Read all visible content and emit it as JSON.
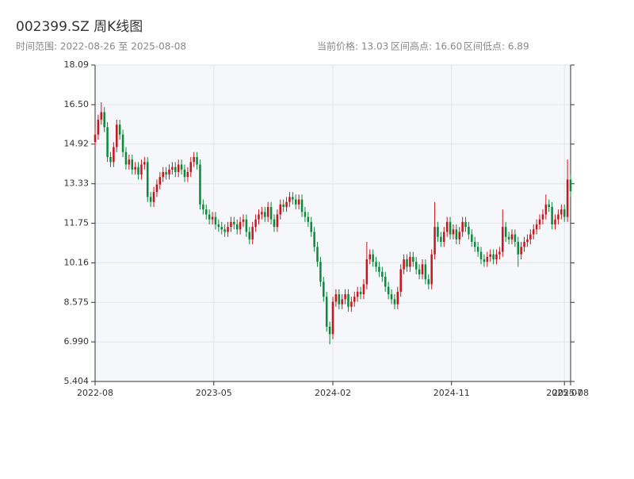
{
  "chart_data": {
    "type": "candlestick",
    "title": "002399.SZ 周K线图",
    "subtitle": "时间范围: 2022-08-26 至 2025-08-08",
    "info": [
      "当前价格: 13.03",
      "区间高点: 16.60",
      "区间低点: 6.89"
    ],
    "up_color": "#c8161d",
    "down_color": "#0b8a3c",
    "grid": true,
    "ylim": [
      5.404,
      18.09
    ],
    "yticks": [
      5.404,
      {
        "value": 6.99,
        "label": "6.990"
      },
      8.575,
      10.16,
      11.75,
      13.33,
      14.92,
      {
        "value": 16.5,
        "label": "16.50"
      },
      18.09
    ],
    "xlim": [
      "2022-08-26",
      "2025-08-08"
    ],
    "xticks": [
      {
        "value": "2022-08-26",
        "label": "2022-08"
      },
      {
        "value": "2023-05-22",
        "label": "2023-05"
      },
      {
        "value": "2024-02-16",
        "label": "2024-02"
      },
      {
        "value": "2024-11-11",
        "label": "2024-11"
      },
      {
        "value": "2025-07-25",
        "label": "2025-07"
      },
      {
        "value": "2025-08-08",
        "label": "2025-08"
      }
    ],
    "x": [
      "2022-08-26",
      "2022-09-02",
      "2022-09-09",
      "2022-09-16",
      "2022-09-23",
      "2022-09-30",
      "2022-10-07",
      "2022-10-14",
      "2022-10-21",
      "2022-10-28",
      "2022-11-04",
      "2022-11-11",
      "2022-11-18",
      "2022-11-25",
      "2022-12-02",
      "2022-12-09",
      "2022-12-16",
      "2022-12-23",
      "2022-12-30",
      "2023-01-06",
      "2023-01-13",
      "2023-01-20",
      "2023-01-27",
      "2023-02-03",
      "2023-02-10",
      "2023-02-17",
      "2023-02-24",
      "2023-03-03",
      "2023-03-10",
      "2023-03-17",
      "2023-03-24",
      "2023-03-31",
      "2023-04-07",
      "2023-04-14",
      "2023-04-21",
      "2023-04-28",
      "2023-05-05",
      "2023-05-12",
      "2023-05-19",
      "2023-05-26",
      "2023-06-02",
      "2023-06-09",
      "2023-06-16",
      "2023-06-23",
      "2023-06-30",
      "2023-07-07",
      "2023-07-14",
      "2023-07-21",
      "2023-07-28",
      "2023-08-04",
      "2023-08-11",
      "2023-08-18",
      "2023-08-25",
      "2023-09-01",
      "2023-09-08",
      "2023-09-15",
      "2023-09-22",
      "2023-09-29",
      "2023-10-06",
      "2023-10-13",
      "2023-10-20",
      "2023-10-27",
      "2023-11-03",
      "2023-11-10",
      "2023-11-17",
      "2023-11-24",
      "2023-12-01",
      "2023-12-08",
      "2023-12-15",
      "2023-12-22",
      "2023-12-29",
      "2024-01-05",
      "2024-01-12",
      "2024-01-19",
      "2024-01-26",
      "2024-02-02",
      "2024-02-09",
      "2024-02-16",
      "2024-02-23",
      "2024-03-01",
      "2024-03-08",
      "2024-03-15",
      "2024-03-22",
      "2024-03-29",
      "2024-04-05",
      "2024-04-12",
      "2024-04-19",
      "2024-04-26",
      "2024-05-03",
      "2024-05-10",
      "2024-05-17",
      "2024-05-24",
      "2024-05-31",
      "2024-06-07",
      "2024-06-14",
      "2024-06-21",
      "2024-06-28",
      "2024-07-05",
      "2024-07-12",
      "2024-07-19",
      "2024-07-26",
      "2024-08-02",
      "2024-08-09",
      "2024-08-16",
      "2024-08-23",
      "2024-08-30",
      "2024-09-06",
      "2024-09-13",
      "2024-09-20",
      "2024-09-27",
      "2024-10-04",
      "2024-10-11",
      "2024-10-18",
      "2024-10-25",
      "2024-11-01",
      "2024-11-08",
      "2024-11-15",
      "2024-11-22",
      "2024-11-29",
      "2024-12-06",
      "2024-12-13",
      "2024-12-20",
      "2024-12-27",
      "2025-01-03",
      "2025-01-10",
      "2025-01-17",
      "2025-01-24",
      "2025-01-31",
      "2025-02-07",
      "2025-02-14",
      "2025-02-21",
      "2025-02-28",
      "2025-03-07",
      "2025-03-14",
      "2025-03-21",
      "2025-03-28",
      "2025-04-04",
      "2025-04-11",
      "2025-04-18",
      "2025-04-25",
      "2025-05-02",
      "2025-05-09",
      "2025-05-16",
      "2025-05-23",
      "2025-05-30",
      "2025-06-06",
      "2025-06-13",
      "2025-06-20",
      "2025-06-27",
      "2025-07-04",
      "2025-07-11",
      "2025-07-18",
      "2025-07-25",
      "2025-08-01",
      "2025-08-08"
    ],
    "open": [
      15.0,
      15.3,
      15.9,
      16.2,
      15.6,
      14.4,
      14.2,
      14.8,
      15.7,
      15.3,
      14.6,
      14.1,
      14.3,
      13.9,
      14.0,
      13.7,
      14.1,
      14.2,
      12.8,
      12.6,
      13.0,
      13.3,
      13.6,
      13.8,
      13.7,
      13.9,
      14.0,
      13.8,
      14.1,
      13.9,
      13.6,
      13.8,
      14.2,
      14.4,
      14.1,
      12.5,
      12.3,
      12.1,
      11.9,
      12.0,
      11.7,
      11.6,
      11.5,
      11.4,
      11.6,
      11.8,
      11.7,
      11.5,
      11.8,
      11.9,
      11.4,
      11.1,
      11.6,
      11.9,
      12.1,
      12.2,
      12.0,
      12.4,
      11.9,
      11.6,
      12.1,
      12.5,
      12.4,
      12.6,
      12.8,
      12.7,
      12.5,
      12.7,
      12.2,
      12.0,
      11.8,
      11.4,
      10.8,
      10.2,
      9.4,
      8.8,
      7.6,
      7.3,
      8.6,
      8.9,
      8.5,
      8.7,
      8.9,
      8.4,
      8.6,
      8.8,
      9.0,
      8.9,
      9.3,
      10.3,
      10.5,
      10.2,
      10.0,
      9.8,
      9.6,
      9.2,
      8.9,
      8.7,
      8.5,
      9.0,
      9.9,
      10.3,
      10.0,
      10.4,
      10.2,
      9.9,
      9.7,
      10.1,
      9.5,
      9.3,
      10.5,
      11.6,
      11.2,
      11.0,
      11.4,
      11.8,
      11.3,
      11.5,
      11.1,
      11.4,
      11.8,
      11.6,
      11.3,
      11.0,
      10.8,
      10.6,
      10.3,
      10.2,
      10.4,
      10.5,
      10.3,
      10.5,
      10.6,
      11.6,
      11.2,
      11.1,
      11.3,
      11.0,
      10.5,
      10.8,
      11.0,
      11.1,
      11.3,
      11.5,
      11.7,
      11.9,
      12.1,
      12.5,
      12.4,
      11.7,
      11.9,
      12.1,
      12.3,
      12.0,
      13.5
    ],
    "high": [
      15.5,
      16.1,
      16.6,
      16.4,
      15.8,
      14.6,
      15.0,
      15.9,
      15.9,
      15.5,
      14.8,
      14.5,
      14.5,
      14.2,
      14.2,
      14.3,
      14.4,
      14.4,
      13.0,
      13.2,
      13.5,
      13.8,
      14.0,
      14.0,
      14.1,
      14.2,
      14.2,
      14.3,
      14.3,
      14.1,
      14.0,
      14.4,
      14.6,
      14.6,
      14.3,
      12.7,
      12.5,
      12.3,
      12.2,
      12.2,
      11.9,
      11.8,
      11.7,
      11.8,
      12.0,
      12.0,
      11.9,
      12.0,
      12.1,
      12.1,
      11.6,
      11.8,
      12.1,
      12.3,
      12.4,
      12.4,
      12.6,
      12.6,
      12.1,
      12.3,
      12.7,
      12.7,
      12.8,
      13.0,
      13.0,
      12.9,
      12.9,
      12.9,
      12.4,
      12.2,
      12.0,
      11.6,
      11.0,
      10.4,
      9.6,
      9.0,
      7.8,
      8.8,
      9.1,
      9.1,
      8.9,
      9.1,
      9.1,
      8.8,
      9.0,
      9.2,
      9.2,
      9.5,
      11.0,
      10.7,
      10.7,
      10.4,
      10.2,
      10.0,
      9.8,
      9.4,
      9.1,
      8.9,
      9.2,
      10.1,
      10.5,
      10.5,
      10.6,
      10.6,
      10.4,
      10.1,
      10.3,
      10.3,
      9.7,
      10.7,
      12.6,
      11.8,
      11.4,
      11.6,
      12.0,
      12.0,
      11.7,
      11.7,
      11.6,
      12.0,
      12.0,
      11.8,
      11.5,
      11.2,
      11.0,
      10.8,
      10.5,
      10.6,
      10.7,
      10.7,
      10.7,
      10.8,
      12.3,
      11.8,
      11.4,
      11.5,
      11.5,
      11.2,
      11.0,
      11.2,
      11.3,
      11.5,
      11.7,
      11.9,
      12.1,
      12.3,
      12.9,
      12.7,
      12.6,
      12.1,
      12.3,
      12.5,
      12.5,
      14.3,
      13.7
    ],
    "low": [
      14.8,
      15.1,
      15.7,
      15.4,
      14.2,
      14.0,
      14.0,
      14.6,
      15.1,
      14.4,
      13.9,
      13.9,
      13.7,
      13.7,
      13.5,
      13.5,
      13.9,
      12.6,
      12.4,
      12.4,
      12.8,
      13.1,
      13.4,
      13.5,
      13.5,
      13.7,
      13.6,
      13.6,
      13.7,
      13.4,
      13.4,
      13.6,
      14.0,
      13.9,
      12.3,
      12.1,
      11.9,
      11.7,
      11.7,
      11.5,
      11.4,
      11.3,
      11.2,
      11.2,
      11.4,
      11.5,
      11.3,
      11.3,
      11.6,
      11.2,
      10.9,
      10.9,
      11.4,
      11.7,
      11.9,
      11.8,
      11.8,
      11.7,
      11.4,
      11.4,
      11.9,
      12.2,
      12.2,
      12.4,
      12.5,
      12.3,
      12.3,
      12.0,
      11.8,
      11.6,
      11.2,
      10.6,
      10.0,
      9.2,
      8.6,
      7.4,
      6.89,
      7.1,
      8.4,
      8.3,
      8.3,
      8.5,
      8.2,
      8.2,
      8.4,
      8.6,
      8.7,
      8.7,
      9.1,
      10.1,
      10.0,
      9.8,
      9.6,
      9.4,
      9.0,
      8.7,
      8.5,
      8.3,
      8.3,
      8.8,
      9.7,
      9.8,
      9.8,
      10.0,
      9.7,
      9.5,
      9.5,
      9.3,
      9.1,
      9.1,
      10.3,
      11.0,
      10.8,
      10.8,
      11.2,
      11.1,
      11.1,
      10.9,
      10.9,
      11.2,
      11.4,
      11.1,
      10.8,
      10.6,
      10.4,
      10.1,
      10.0,
      10.0,
      10.2,
      10.1,
      10.1,
      10.3,
      10.4,
      11.0,
      10.9,
      10.9,
      10.8,
      10.0,
      10.3,
      10.6,
      10.8,
      10.9,
      11.1,
      11.3,
      11.5,
      11.7,
      11.9,
      12.2,
      11.5,
      11.5,
      11.7,
      11.9,
      11.8,
      11.8,
      12.8
    ],
    "close": [
      15.3,
      15.9,
      16.2,
      15.6,
      14.4,
      14.2,
      14.8,
      15.7,
      15.3,
      14.6,
      14.1,
      14.3,
      13.9,
      14.0,
      13.7,
      14.1,
      14.2,
      12.8,
      12.6,
      13.0,
      13.3,
      13.6,
      13.8,
      13.7,
      13.9,
      14.0,
      13.8,
      14.1,
      13.9,
      13.6,
      13.8,
      14.2,
      14.4,
      14.1,
      12.5,
      12.3,
      12.1,
      11.9,
      12.0,
      11.7,
      11.6,
      11.5,
      11.4,
      11.6,
      11.8,
      11.7,
      11.5,
      11.8,
      11.9,
      11.4,
      11.1,
      11.6,
      11.9,
      12.1,
      12.2,
      12.0,
      12.4,
      11.9,
      11.6,
      12.1,
      12.5,
      12.4,
      12.6,
      12.8,
      12.7,
      12.5,
      12.7,
      12.2,
      12.0,
      11.8,
      11.4,
      10.8,
      10.2,
      9.4,
      8.8,
      7.6,
      7.3,
      8.6,
      8.9,
      8.5,
      8.7,
      8.9,
      8.4,
      8.6,
      8.8,
      9.0,
      8.9,
      9.3,
      10.3,
      10.5,
      10.2,
      10.0,
      9.8,
      9.6,
      9.2,
      8.9,
      8.7,
      8.5,
      9.0,
      9.9,
      10.3,
      10.0,
      10.4,
      10.2,
      9.9,
      9.7,
      10.1,
      9.5,
      9.3,
      10.5,
      11.6,
      11.2,
      11.0,
      11.4,
      11.8,
      11.3,
      11.5,
      11.1,
      11.4,
      11.8,
      11.6,
      11.3,
      11.0,
      10.8,
      10.6,
      10.3,
      10.2,
      10.4,
      10.5,
      10.3,
      10.5,
      10.6,
      11.6,
      11.2,
      11.1,
      11.3,
      11.0,
      10.5,
      10.8,
      11.0,
      11.1,
      11.3,
      11.5,
      11.7,
      11.9,
      12.1,
      12.5,
      12.4,
      11.7,
      11.9,
      12.1,
      12.3,
      12.0,
      13.5,
      13.03
    ]
  }
}
